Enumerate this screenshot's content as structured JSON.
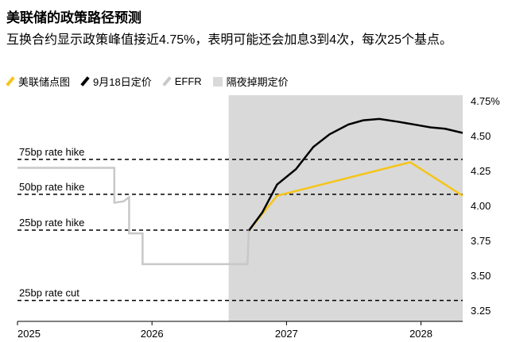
{
  "chart_data": {
    "type": "line",
    "title": "美联储的政策路径预测",
    "subtitle": "互换合约显示政策峰值接近4.75%，表明可能还会加息3到4次，每次25个基点。",
    "xlim": [
      2025,
      2028.31
    ],
    "xticks": [
      2025,
      2026,
      2027,
      2028
    ],
    "ylim": [
      3.17,
      4.79
    ],
    "yticks": [
      {
        "value": 4.75,
        "label": "4.75%"
      },
      {
        "value": 4.5,
        "label": "4.50"
      },
      4.25,
      {
        "value": 4,
        "label": "4.00"
      },
      3.75,
      {
        "value": 3.5,
        "label": "3.50"
      },
      3.25
    ],
    "shaded_region": {
      "name": "隔夜掉期定价",
      "from": 2026.57,
      "color": "#d9d9d9"
    },
    "reference_lines": [
      {
        "label": "75bp rate hike",
        "value": 4.33
      },
      {
        "label": "50bp rate hike",
        "value": 4.08
      },
      {
        "label": "25bp rate hike",
        "value": 3.824
      },
      {
        "label": "25bp rate cut",
        "value": 3.32
      }
    ],
    "series": [
      {
        "name": "美联储点图",
        "color": "#f5c518",
        "x": [
          2026.72,
          2026.93,
          2027.92,
          2028.31
        ],
        "values": [
          3.82,
          4.07,
          4.31,
          4.07
        ]
      },
      {
        "name": "9月18日定价",
        "color": "#000000",
        "x": [
          2026.72,
          2026.82,
          2026.93,
          2027.07,
          2027.2,
          2027.32,
          2027.46,
          2027.57,
          2027.69,
          2027.83,
          2027.95,
          2028.07,
          2028.18,
          2028.31
        ],
        "values": [
          3.82,
          3.95,
          4.15,
          4.26,
          4.42,
          4.51,
          4.58,
          4.61,
          4.62,
          4.6,
          4.58,
          4.56,
          4.55,
          4.52
        ]
      },
      {
        "name": "EFFR",
        "color": "#c8c8c8",
        "x": [
          2025,
          2025.72,
          2025.72,
          2025.79,
          2025.83,
          2025.83,
          2025.93,
          2025.93,
          2026.71,
          2026.72
        ],
        "values": [
          4.27,
          4.27,
          4.02,
          4.03,
          4.06,
          3.8,
          3.8,
          3.58,
          3.58,
          3.83
        ]
      }
    ]
  }
}
